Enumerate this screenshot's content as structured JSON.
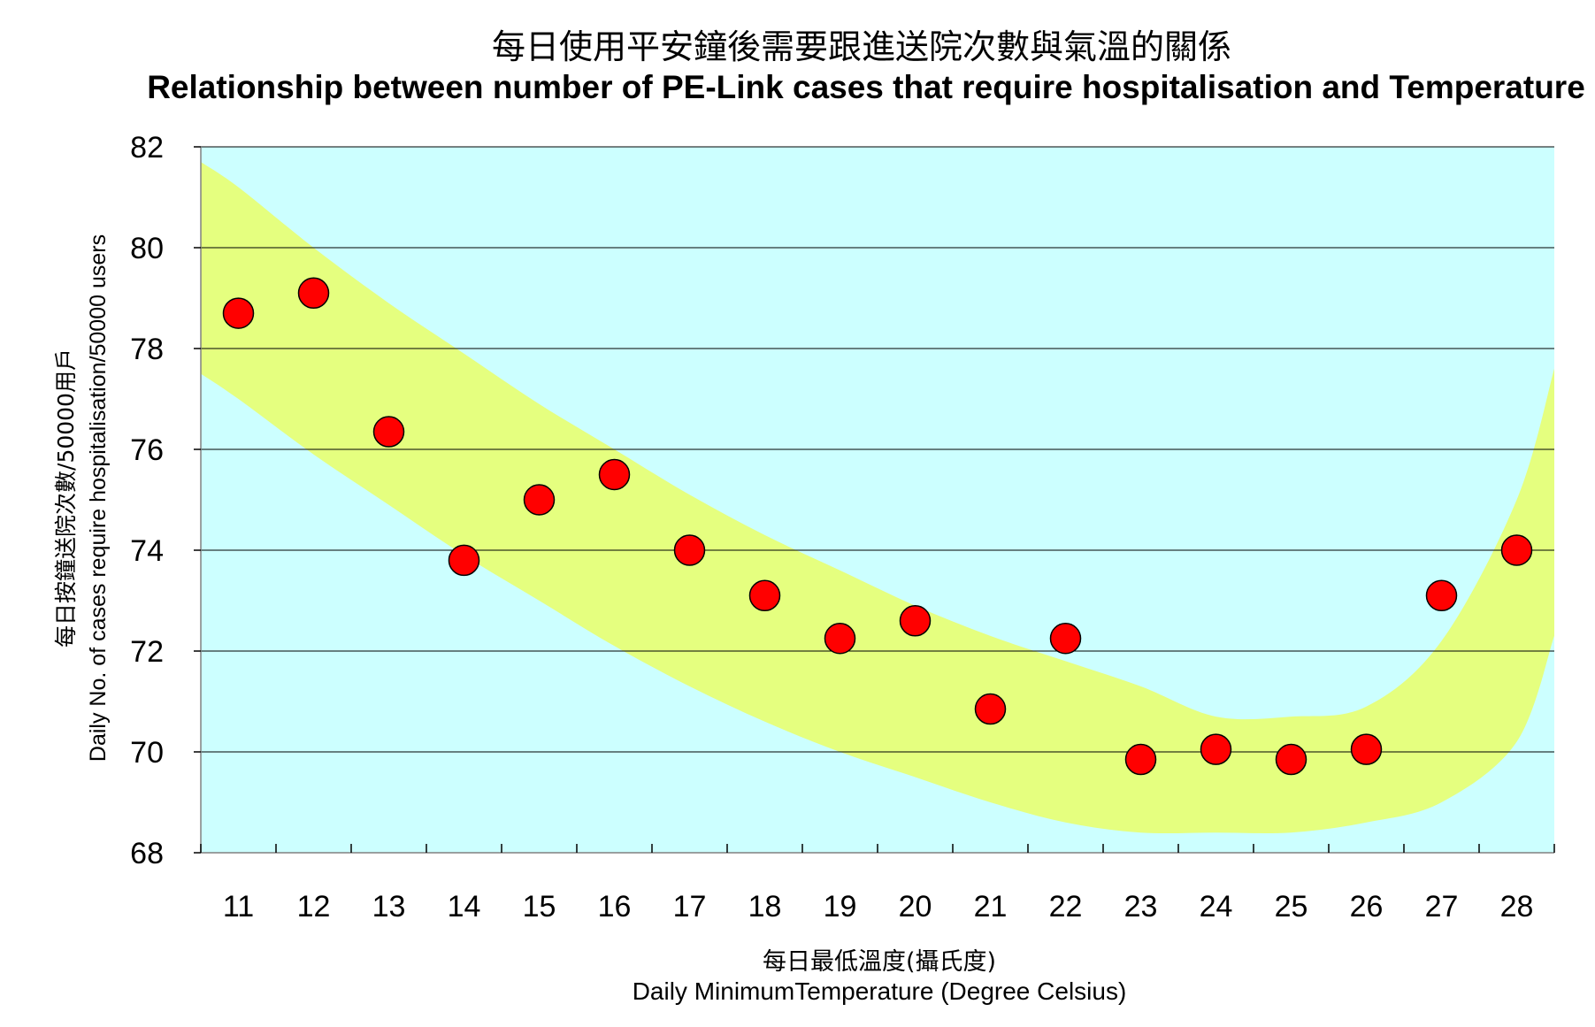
{
  "chart_data": {
    "type": "scatter",
    "title": "每日使用平安鐘後需要跟進送院次數與氣溫的關係",
    "subtitle": "Relationship between number of PE-Link cases that require hospitalisation and Temperature",
    "xlabel_zh": "每日最低溫度(攝氏度)",
    "xlabel": "Daily MinimumTemperature (Degree Celsius)",
    "ylabel_zh": "每日按鐘送院次數/50000用戶",
    "ylabel": "Daily No. of cases require hospitalisation/50000 users",
    "x": [
      11,
      12,
      13,
      14,
      15,
      16,
      17,
      18,
      19,
      20,
      21,
      22,
      23,
      24,
      25,
      26,
      27,
      28
    ],
    "y": [
      78.7,
      79.1,
      76.35,
      73.8,
      75.0,
      75.5,
      74.0,
      73.1,
      72.25,
      72.6,
      70.85,
      72.25,
      69.85,
      70.05,
      69.85,
      70.05,
      73.1,
      74.0
    ],
    "xlim": [
      10.5,
      28.5
    ],
    "ylim": [
      68,
      82
    ],
    "yticks": [
      68,
      70,
      72,
      74,
      76,
      78,
      80,
      82
    ],
    "xticks": [
      11,
      12,
      13,
      14,
      15,
      16,
      17,
      18,
      19,
      20,
      21,
      22,
      23,
      24,
      25,
      26,
      27,
      28
    ],
    "grid": "horizontal",
    "band": {
      "x": [
        10.5,
        11,
        12,
        13,
        14,
        15,
        16,
        17,
        18,
        19,
        20,
        21,
        22,
        23,
        24,
        25,
        26,
        27,
        28,
        28.5
      ],
      "upper": [
        81.7,
        81.2,
        80.0,
        78.9,
        77.9,
        76.9,
        76.0,
        75.1,
        74.3,
        73.6,
        72.9,
        72.3,
        71.8,
        71.3,
        70.7,
        70.7,
        70.9,
        72.2,
        75.0,
        77.6
      ],
      "lower": [
        77.5,
        77.0,
        75.9,
        74.9,
        73.9,
        73.0,
        72.1,
        71.3,
        70.6,
        70.0,
        69.5,
        69.0,
        68.6,
        68.4,
        68.4,
        68.4,
        68.6,
        69.0,
        70.2,
        72.3
      ]
    },
    "colors": {
      "plot_background": "#ccffff",
      "band": "#e5ff7f",
      "marker": "#ff0000",
      "grid": "#000000"
    }
  }
}
